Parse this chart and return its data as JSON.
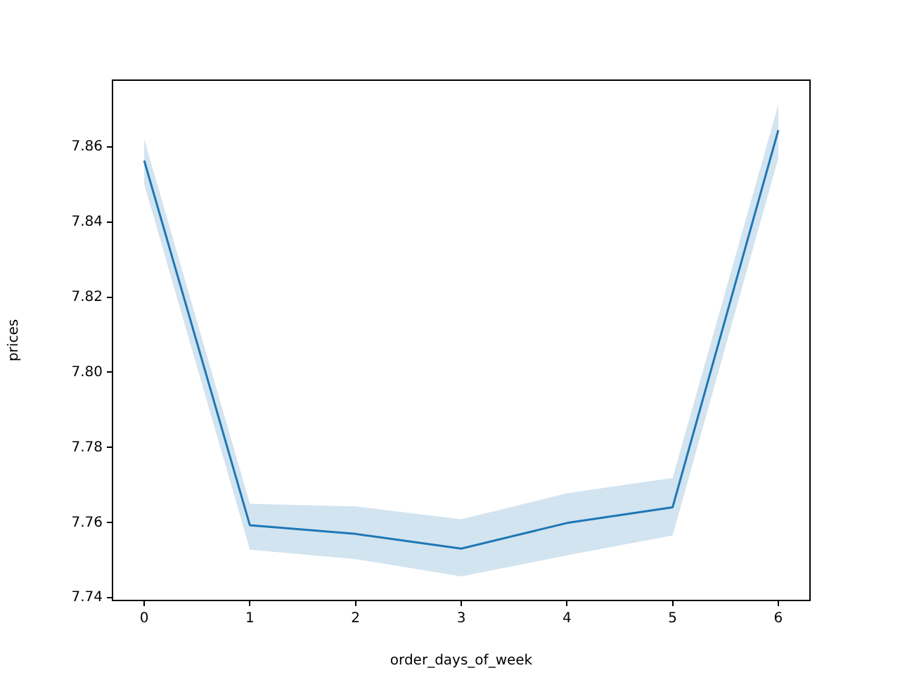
{
  "chart_data": {
    "type": "line",
    "xlabel": "order_days_of_week",
    "ylabel": "prices",
    "x": [
      0,
      1,
      2,
      3,
      4,
      5,
      6
    ],
    "series": [
      {
        "color": "#1f77b4",
        "values": [
          7.8563,
          7.7593,
          7.757,
          7.7531,
          7.7599,
          7.7641,
          7.8644
        ],
        "lower": [
          7.85,
          7.7528,
          7.7503,
          7.7457,
          7.7513,
          7.7566,
          7.8569
        ],
        "upper": [
          7.862,
          7.765,
          7.7643,
          7.7609,
          7.7678,
          7.7719,
          7.8712
        ]
      }
    ],
    "xlim": [
      -0.3,
      6.3
    ],
    "xticks": [
      0,
      1,
      2,
      3,
      4,
      5,
      6
    ],
    "ylim": [
      7.7393,
      7.8777
    ],
    "yticks": [
      {
        "value": 7.74,
        "label": "7.74"
      },
      {
        "value": 7.76,
        "label": "7.76"
      },
      {
        "value": 7.78,
        "label": "7.78"
      },
      {
        "value": 7.8,
        "label": "7.80"
      },
      {
        "value": 7.82,
        "label": "7.82"
      },
      {
        "value": 7.84,
        "label": "7.84"
      },
      {
        "value": 7.86,
        "label": "7.86"
      }
    ],
    "grid": false,
    "legend": false,
    "marker": "none",
    "line_style": "solid"
  }
}
